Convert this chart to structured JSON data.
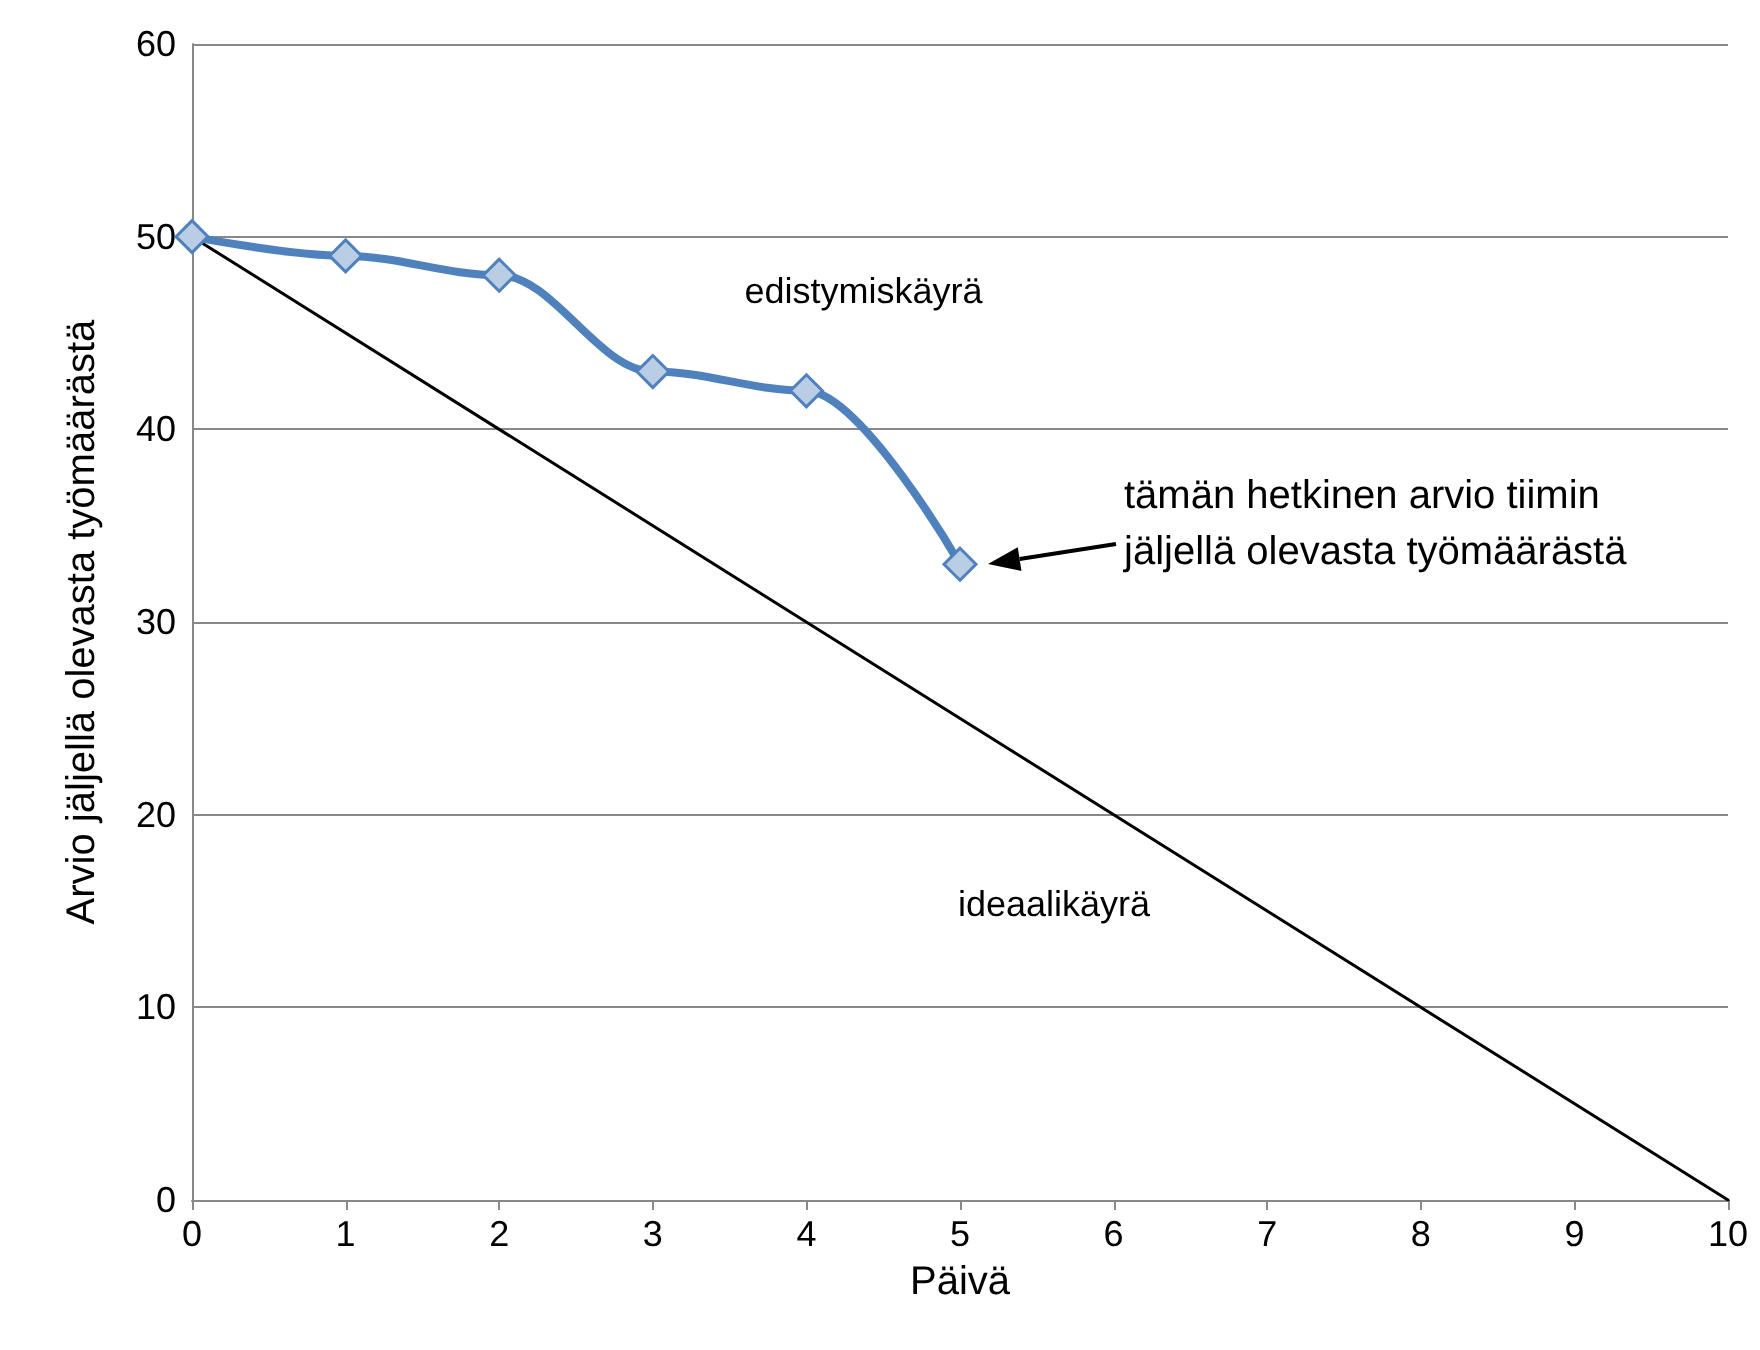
{
  "chart_data": {
    "type": "line",
    "xlabel": "Päivä",
    "ylabel": "Arvio jäljellä olevasta työmäärästä",
    "xlim": [
      0,
      10
    ],
    "xticks": [
      0,
      1,
      2,
      3,
      4,
      5,
      6,
      7,
      8,
      9,
      10
    ],
    "ylim": [
      0,
      60
    ],
    "yticks": [
      0,
      10,
      20,
      30,
      40,
      50,
      60
    ],
    "grid": "y",
    "legend": false,
    "series": [
      {
        "name": "edistymiskäyrä",
        "color": "#4f81bd",
        "marker": "diamond",
        "x": [
          0,
          1,
          2,
          3,
          4,
          5
        ],
        "values": [
          50,
          49,
          48,
          43,
          42,
          33
        ]
      },
      {
        "name": "ideaalikäyrä",
        "color": "#000000",
        "marker": "none",
        "x": [
          0,
          10
        ],
        "values": [
          50,
          0
        ]
      }
    ],
    "annotations": [
      "tämän hetkinen arvio tiimin jäljellä olevasta työmäärästä"
    ]
  }
}
